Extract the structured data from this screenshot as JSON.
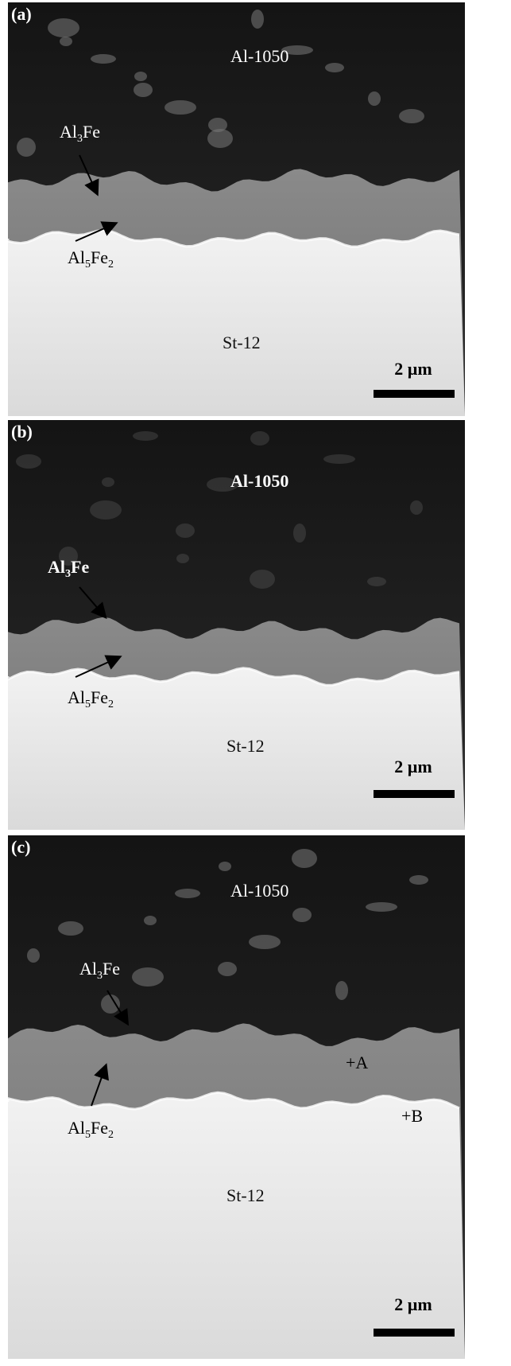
{
  "panels": [
    {
      "label": "(a)",
      "matrix": "Al-1050",
      "layer_top": [
        "Al",
        "3",
        "Fe"
      ],
      "layer_bottom": [
        "Al",
        "5",
        "Fe",
        "2"
      ],
      "substrate": "St-12",
      "scale_bar": "2 µm"
    },
    {
      "label": "(b)",
      "matrix": "Al-1050",
      "layer_top": [
        "Al",
        "3",
        "Fe"
      ],
      "layer_bottom": [
        "Al",
        "5",
        "Fe",
        "2"
      ],
      "substrate": "St-12",
      "scale_bar": "2 µm"
    },
    {
      "label": "(c)",
      "matrix": "Al-1050",
      "layer_top": [
        "Al",
        "3",
        "Fe"
      ],
      "layer_bottom": [
        "Al",
        "5",
        "Fe",
        "2"
      ],
      "substrate": "St-12",
      "scale_bar": "2 µm",
      "points": [
        "+A",
        "+B"
      ]
    }
  ]
}
